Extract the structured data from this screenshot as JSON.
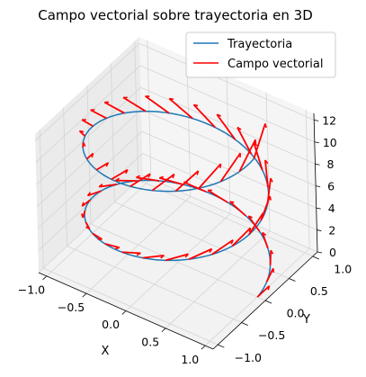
{
  "chart_data": {
    "type": "line",
    "projection": "3d",
    "title": "Campo vectorial sobre trayectoria en 3D",
    "xlabel": "X",
    "ylabel": "Y",
    "zlabel": "",
    "xlim": [
      -1.1,
      1.1
    ],
    "ylim": [
      -1.1,
      1.1
    ],
    "zlim": [
      0,
      12.6
    ],
    "x_ticks": [
      "−1.0",
      "−0.5",
      "0.0",
      "0.5",
      "1.0"
    ],
    "y_ticks": [
      "−1.0",
      "−0.5",
      "0.0",
      "0.5",
      "1.0"
    ],
    "z_ticks": [
      "0",
      "2",
      "4",
      "6",
      "8",
      "10",
      "12"
    ],
    "grid": true,
    "legend_position": "top-right",
    "series": [
      {
        "name": "Trayectoria",
        "kind": "curve",
        "color": "#1f77b4",
        "equation": "x=cos(t), y=sin(t), z=t, 0<=t<=12.57",
        "t_range": [
          0,
          12.57
        ]
      },
      {
        "name": "Campo vectorial",
        "kind": "quiver",
        "color": "#ff0000",
        "vectors_count": 50,
        "vector_direction": "(-y, x, z) sampled along the trajectory"
      }
    ]
  }
}
